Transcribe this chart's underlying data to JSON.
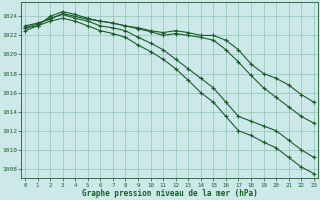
{
  "xlabel": "Graphe pression niveau de la mer (hPa)",
  "bg_color": "#cce8e8",
  "grid_color": "#99ccbb",
  "line_color": "#1a5c2a",
  "ylim": [
    1007.0,
    1025.5
  ],
  "xlim": [
    -0.3,
    23.3
  ],
  "yticks": [
    1008,
    1010,
    1012,
    1014,
    1016,
    1018,
    1020,
    1022,
    1024
  ],
  "xticks": [
    0,
    1,
    2,
    3,
    4,
    5,
    6,
    7,
    8,
    9,
    10,
    11,
    12,
    13,
    14,
    15,
    16,
    17,
    18,
    19,
    20,
    21,
    22,
    23
  ],
  "series": [
    [
      1023.0,
      1023.3,
      1023.7,
      1024.3,
      1024.0,
      1023.7,
      1023.5,
      1023.3,
      1023.0,
      1022.7,
      1022.4,
      1022.0,
      1022.2,
      1022.0,
      1021.8,
      1021.5,
      1020.5,
      1019.2,
      1017.8,
      1016.5,
      1015.5,
      1014.5,
      1013.5,
      1012.8
    ],
    [
      1022.8,
      1023.0,
      1024.0,
      1024.5,
      1024.2,
      1023.8,
      1023.5,
      1023.3,
      1023.0,
      1022.8,
      1022.5,
      1022.3,
      1022.5,
      1022.3,
      1022.0,
      1022.0,
      1021.5,
      1020.5,
      1019.0,
      1018.0,
      1017.5,
      1016.8,
      1015.8,
      1015.0
    ],
    [
      1022.8,
      1023.2,
      1023.8,
      1024.2,
      1023.8,
      1023.5,
      1023.0,
      1022.8,
      1022.5,
      1021.8,
      1021.2,
      1020.5,
      1019.5,
      1018.5,
      1017.5,
      1016.5,
      1015.0,
      1013.5,
      1013.0,
      1012.5,
      1012.0,
      1011.0,
      1010.0,
      1009.2
    ],
    [
      1022.5,
      1023.0,
      1023.5,
      1023.8,
      1023.5,
      1023.0,
      1022.5,
      1022.2,
      1021.8,
      1021.0,
      1020.3,
      1019.5,
      1018.5,
      1017.3,
      1016.0,
      1015.0,
      1013.5,
      1012.0,
      1011.5,
      1010.8,
      1010.2,
      1009.2,
      1008.2,
      1007.5
    ]
  ]
}
